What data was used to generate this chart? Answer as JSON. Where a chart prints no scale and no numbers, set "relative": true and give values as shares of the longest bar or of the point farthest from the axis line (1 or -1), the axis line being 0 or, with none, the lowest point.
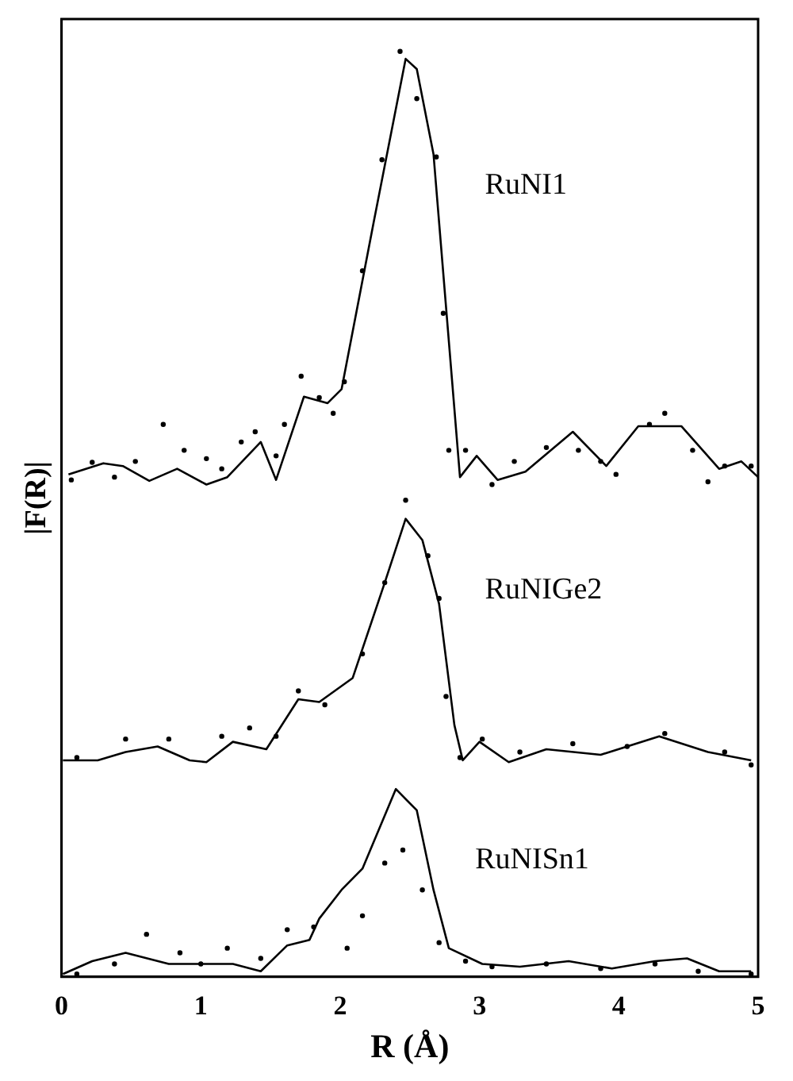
{
  "chart_data": {
    "type": "line",
    "xlabel": "R (Å)",
    "ylabel": "|F(R)|",
    "relative": true,
    "xlim": [
      0,
      5
    ],
    "xticks": [
      0,
      1,
      2,
      3,
      4,
      5
    ],
    "tick_labels": "x",
    "grid": false,
    "legend": false,
    "series": [
      {
        "name": "RuNI1",
        "color": "#000000",
        "line_style": "solid",
        "marker": "none",
        "x": [
          0.05,
          0.3,
          0.44,
          0.63,
          0.83,
          1.04,
          1.19,
          1.43,
          1.54,
          1.74,
          1.91,
          2.01,
          2.24,
          2.47,
          2.55,
          2.67,
          2.86,
          2.98,
          3.13,
          3.33,
          3.67,
          3.91,
          4.14,
          4.45,
          4.72,
          4.88,
          5.0
        ],
        "values": [
          0.543,
          0.555,
          0.552,
          0.536,
          0.549,
          0.532,
          0.54,
          0.578,
          0.537,
          0.627,
          0.62,
          0.635,
          0.815,
          0.992,
          0.981,
          0.889,
          0.54,
          0.563,
          0.537,
          0.546,
          0.589,
          0.552,
          0.595,
          0.595,
          0.549,
          0.557,
          0.54
        ]
      },
      {
        "type": "scatter",
        "color": "#000000",
        "marker": "circle",
        "x": [
          0.07,
          0.22,
          0.38,
          0.53,
          0.73,
          0.88,
          1.04,
          1.15,
          1.29,
          1.39,
          1.54,
          1.6,
          1.72,
          1.85,
          1.95,
          2.03,
          2.16,
          2.3,
          2.43,
          2.55,
          2.69,
          2.74,
          2.78,
          2.9,
          3.09,
          3.25,
          3.48,
          3.71,
          3.87,
          3.98,
          4.22,
          4.33,
          4.53,
          4.64,
          4.76,
          4.95
        ],
        "values": [
          0.537,
          0.556,
          0.54,
          0.557,
          0.597,
          0.569,
          0.56,
          0.549,
          0.578,
          0.589,
          0.563,
          0.597,
          0.649,
          0.626,
          0.609,
          0.643,
          0.763,
          0.883,
          1.0,
          0.949,
          0.886,
          0.717,
          0.569,
          0.569,
          0.532,
          0.557,
          0.572,
          0.569,
          0.557,
          0.543,
          0.597,
          0.609,
          0.569,
          0.535,
          0.552,
          0.552
        ]
      },
      {
        "name": "RuNIGe2",
        "color": "#000000",
        "line_style": "solid",
        "marker": "none",
        "x": [
          0.01,
          0.26,
          0.46,
          0.69,
          0.92,
          1.04,
          1.23,
          1.47,
          1.7,
          1.85,
          2.09,
          2.32,
          2.47,
          2.59,
          2.71,
          2.82,
          2.88,
          3.0,
          3.21,
          3.48,
          3.87,
          4.29,
          4.64,
          4.95
        ],
        "values": [
          0.234,
          0.234,
          0.243,
          0.249,
          0.234,
          0.232,
          0.254,
          0.246,
          0.3,
          0.297,
          0.323,
          0.426,
          0.495,
          0.472,
          0.403,
          0.272,
          0.234,
          0.254,
          0.232,
          0.246,
          0.24,
          0.26,
          0.243,
          0.234
        ]
      },
      {
        "type": "scatter",
        "color": "#000000",
        "marker": "circle",
        "x": [
          0.11,
          0.46,
          0.77,
          1.15,
          1.35,
          1.54,
          1.7,
          1.89,
          2.16,
          2.32,
          2.47,
          2.63,
          2.71,
          2.76,
          2.86,
          3.02,
          3.29,
          3.67,
          4.06,
          4.33,
          4.76,
          4.95
        ],
        "values": [
          0.237,
          0.257,
          0.257,
          0.26,
          0.269,
          0.26,
          0.309,
          0.294,
          0.349,
          0.426,
          0.515,
          0.455,
          0.409,
          0.303,
          0.237,
          0.257,
          0.243,
          0.252,
          0.249,
          0.263,
          0.243,
          0.229
        ]
      },
      {
        "name": "RuNISn1",
        "color": "#000000",
        "line_style": "solid",
        "marker": "none",
        "x": [
          0.01,
          0.22,
          0.46,
          0.77,
          1.0,
          1.23,
          1.43,
          1.62,
          1.78,
          1.85,
          2.01,
          2.16,
          2.4,
          2.55,
          2.67,
          2.78,
          3.02,
          3.29,
          3.64,
          3.95,
          4.26,
          4.49,
          4.72,
          4.95
        ],
        "values": [
          0.003,
          0.017,
          0.026,
          0.014,
          0.014,
          0.014,
          0.006,
          0.034,
          0.04,
          0.063,
          0.094,
          0.117,
          0.203,
          0.18,
          0.094,
          0.031,
          0.014,
          0.011,
          0.017,
          0.009,
          0.017,
          0.02,
          0.006,
          0.006
        ]
      },
      {
        "type": "scatter",
        "color": "#000000",
        "marker": "circle",
        "x": [
          0.11,
          0.38,
          0.61,
          0.85,
          1.0,
          1.19,
          1.43,
          1.62,
          1.81,
          2.05,
          2.16,
          2.32,
          2.45,
          2.59,
          2.71,
          2.9,
          3.09,
          3.48,
          3.87,
          4.26,
          4.57,
          4.95
        ],
        "values": [
          0.003,
          0.014,
          0.046,
          0.026,
          0.014,
          0.031,
          0.02,
          0.051,
          0.054,
          0.031,
          0.066,
          0.123,
          0.137,
          0.094,
          0.037,
          0.017,
          0.011,
          0.014,
          0.009,
          0.014,
          0.006,
          0.003
        ]
      }
    ]
  }
}
